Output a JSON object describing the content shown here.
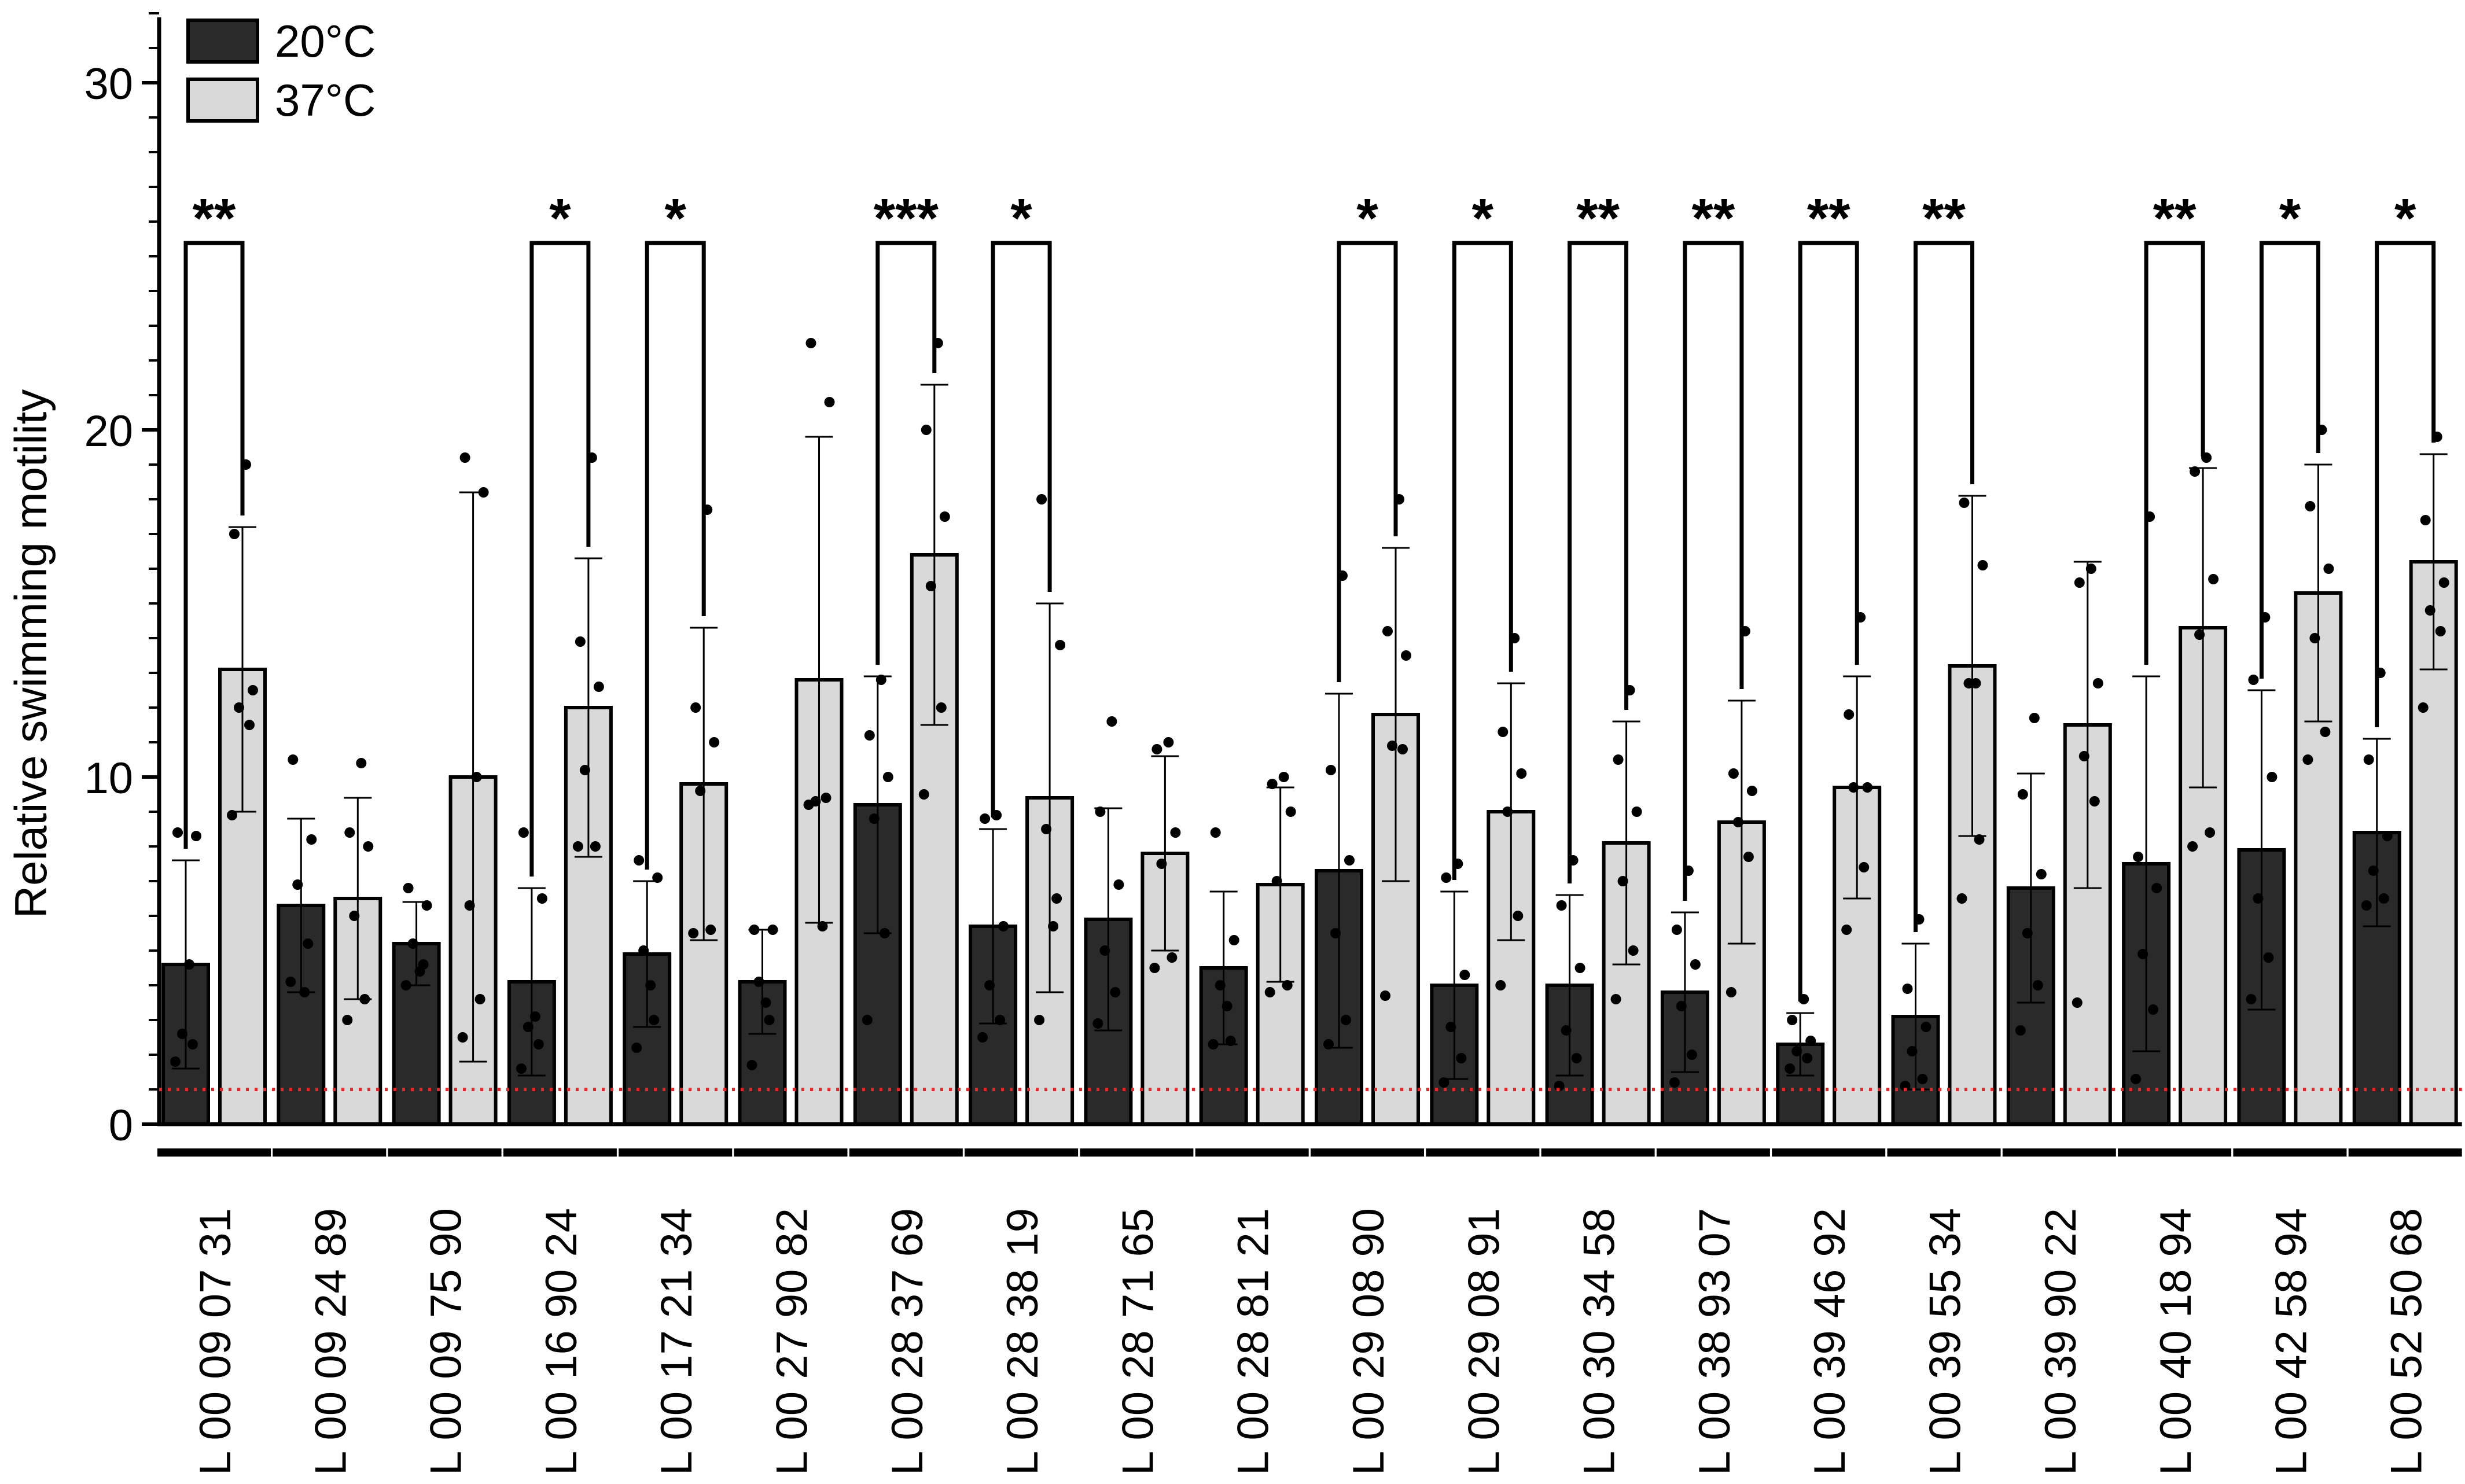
{
  "chart_data": {
    "type": "bar",
    "ylabel": "Relative swimming motility",
    "xlabel": "",
    "ylim": [
      0,
      32
    ],
    "yticks": [
      "0",
      "10",
      "20",
      "30"
    ],
    "reference_line": {
      "y": 1,
      "style": "dotted",
      "color": "#e8262a"
    },
    "legend": {
      "placement": "top-left",
      "items": [
        {
          "label": "20°C",
          "color": "#2a2a2a"
        },
        {
          "label": "37°C",
          "color": "#d9d9d9"
        }
      ]
    },
    "categories": [
      "L 00 09 07 31",
      "L 00 09 24 89",
      "L 00 09 75 90",
      "L 00 16 90 24",
      "L 00 17 21 34",
      "L 00 27 90 82",
      "L 00 28 37 69",
      "L 00 28 38 19",
      "L 00 28 71 65",
      "L 00 28 81 21",
      "L 00 29 08 90",
      "L 00 29 08 91",
      "L 00 30 34 58",
      "L 00 38 93 07",
      "L 00 39 46 92",
      "L 00 39 55 34",
      "L 00 39 90 22",
      "L 00 40 18 94",
      "L 00 42 58 94",
      "L 00 52 50 68"
    ],
    "series": [
      {
        "name": "20°C",
        "color": "#2a2a2a",
        "values": [
          4.6,
          6.3,
          5.2,
          4.1,
          4.9,
          4.1,
          9.2,
          5.7,
          5.9,
          4.5,
          7.3,
          4.0,
          4.0,
          3.8,
          2.3,
          3.1,
          6.8,
          7.5,
          7.9,
          8.4
        ],
        "sd": [
          3.0,
          2.5,
          1.2,
          2.7,
          2.1,
          1.5,
          3.7,
          2.8,
          3.2,
          2.2,
          5.1,
          2.7,
          2.6,
          2.3,
          0.9,
          2.1,
          3.3,
          5.4,
          4.6,
          2.7
        ],
        "points": [
          [
            1.8,
            2.3,
            2.6,
            8.3,
            8.4,
            4.6
          ],
          [
            4.1,
            5.2,
            6.9,
            8.2,
            10.5,
            3.8
          ],
          [
            4.0,
            4.6,
            5.2,
            6.3,
            6.8,
            4.4
          ],
          [
            1.6,
            2.3,
            2.8,
            6.5,
            8.4,
            3.1
          ],
          [
            2.2,
            3.0,
            5.0,
            7.1,
            7.6,
            4.0
          ],
          [
            1.7,
            3.0,
            4.1,
            5.6,
            5.6,
            3.5
          ],
          [
            3.0,
            5.5,
            8.8,
            10.0,
            11.2,
            12.8
          ],
          [
            2.5,
            3.0,
            4.0,
            5.7,
            8.8,
            8.9
          ],
          [
            2.9,
            3.8,
            5.0,
            6.9,
            9.0,
            11.6
          ],
          [
            2.3,
            2.4,
            4.0,
            5.3,
            8.4,
            3.4
          ],
          [
            2.3,
            3.0,
            5.5,
            7.6,
            10.2,
            15.8
          ],
          [
            1.2,
            1.9,
            2.8,
            4.3,
            7.1,
            7.5
          ],
          [
            1.1,
            1.9,
            2.7,
            4.5,
            6.3,
            7.6
          ],
          [
            1.2,
            2.0,
            3.4,
            4.6,
            5.6,
            7.3
          ],
          [
            1.6,
            1.9,
            2.1,
            2.4,
            3.0,
            3.6
          ],
          [
            1.1,
            1.3,
            2.1,
            2.8,
            3.9,
            5.9
          ],
          [
            2.7,
            4.0,
            5.5,
            7.2,
            9.5,
            11.7
          ],
          [
            1.3,
            3.3,
            4.9,
            6.8,
            7.7,
            17.5
          ],
          [
            3.6,
            4.8,
            6.5,
            10.0,
            12.8,
            14.6
          ],
          [
            6.3,
            6.5,
            7.3,
            8.3,
            10.5,
            13.0
          ]
        ]
      },
      {
        "name": "37°C",
        "color": "#d9d9d9",
        "values": [
          13.1,
          6.5,
          10.0,
          12.0,
          9.8,
          12.8,
          16.4,
          9.4,
          7.8,
          6.9,
          11.8,
          9.0,
          8.1,
          8.7,
          9.7,
          13.2,
          11.5,
          14.3,
          15.3,
          16.2
        ],
        "sd": [
          4.1,
          2.9,
          8.2,
          4.3,
          4.5,
          7.0,
          4.9,
          5.6,
          2.8,
          2.8,
          4.8,
          3.7,
          3.5,
          3.5,
          3.2,
          4.9,
          4.7,
          4.6,
          3.7,
          3.1
        ],
        "points": [
          [
            8.9,
            11.5,
            12.0,
            12.5,
            17.0,
            19.0
          ],
          [
            3.0,
            3.6,
            6.0,
            8.0,
            8.4,
            10.4
          ],
          [
            2.5,
            3.6,
            6.3,
            18.2,
            19.2,
            10.0
          ],
          [
            8.0,
            8.0,
            10.2,
            12.6,
            13.9,
            19.2
          ],
          [
            5.5,
            5.6,
            9.6,
            11.0,
            12.0,
            17.7
          ],
          [
            9.2,
            9.4,
            9.3,
            20.8,
            22.5,
            5.7
          ],
          [
            9.5,
            12.0,
            15.5,
            17.5,
            20.0,
            22.5
          ],
          [
            3.0,
            6.5,
            8.5,
            13.8,
            18.0,
            5.7
          ],
          [
            4.5,
            4.8,
            7.5,
            8.4,
            10.8,
            11.0
          ],
          [
            3.8,
            4.0,
            7.0,
            9.0,
            9.8,
            10.0
          ],
          [
            3.7,
            10.8,
            10.9,
            13.5,
            14.2,
            18.0
          ],
          [
            4.0,
            6.0,
            9.0,
            10.1,
            11.3,
            14.0
          ],
          [
            3.6,
            5.0,
            7.0,
            9.0,
            10.5,
            12.5
          ],
          [
            3.8,
            7.7,
            8.7,
            9.6,
            10.1,
            14.2
          ],
          [
            5.6,
            7.4,
            9.7,
            9.7,
            11.8,
            14.6
          ],
          [
            6.5,
            8.2,
            12.7,
            16.1,
            17.9,
            12.7
          ],
          [
            3.5,
            9.3,
            10.6,
            12.7,
            15.6,
            16.0
          ],
          [
            8.0,
            8.4,
            14.1,
            15.7,
            18.8,
            19.2
          ],
          [
            10.5,
            11.3,
            14.0,
            16.0,
            17.8,
            20.0
          ],
          [
            12.0,
            14.2,
            14.8,
            15.6,
            17.4,
            19.8
          ]
        ]
      }
    ],
    "significance": [
      "**",
      "",
      "",
      "*",
      "*",
      "",
      "***",
      "*",
      "",
      "",
      "*",
      "*",
      "**",
      "**",
      "**",
      "**",
      "",
      "**",
      "*",
      "*"
    ],
    "grid": false
  }
}
